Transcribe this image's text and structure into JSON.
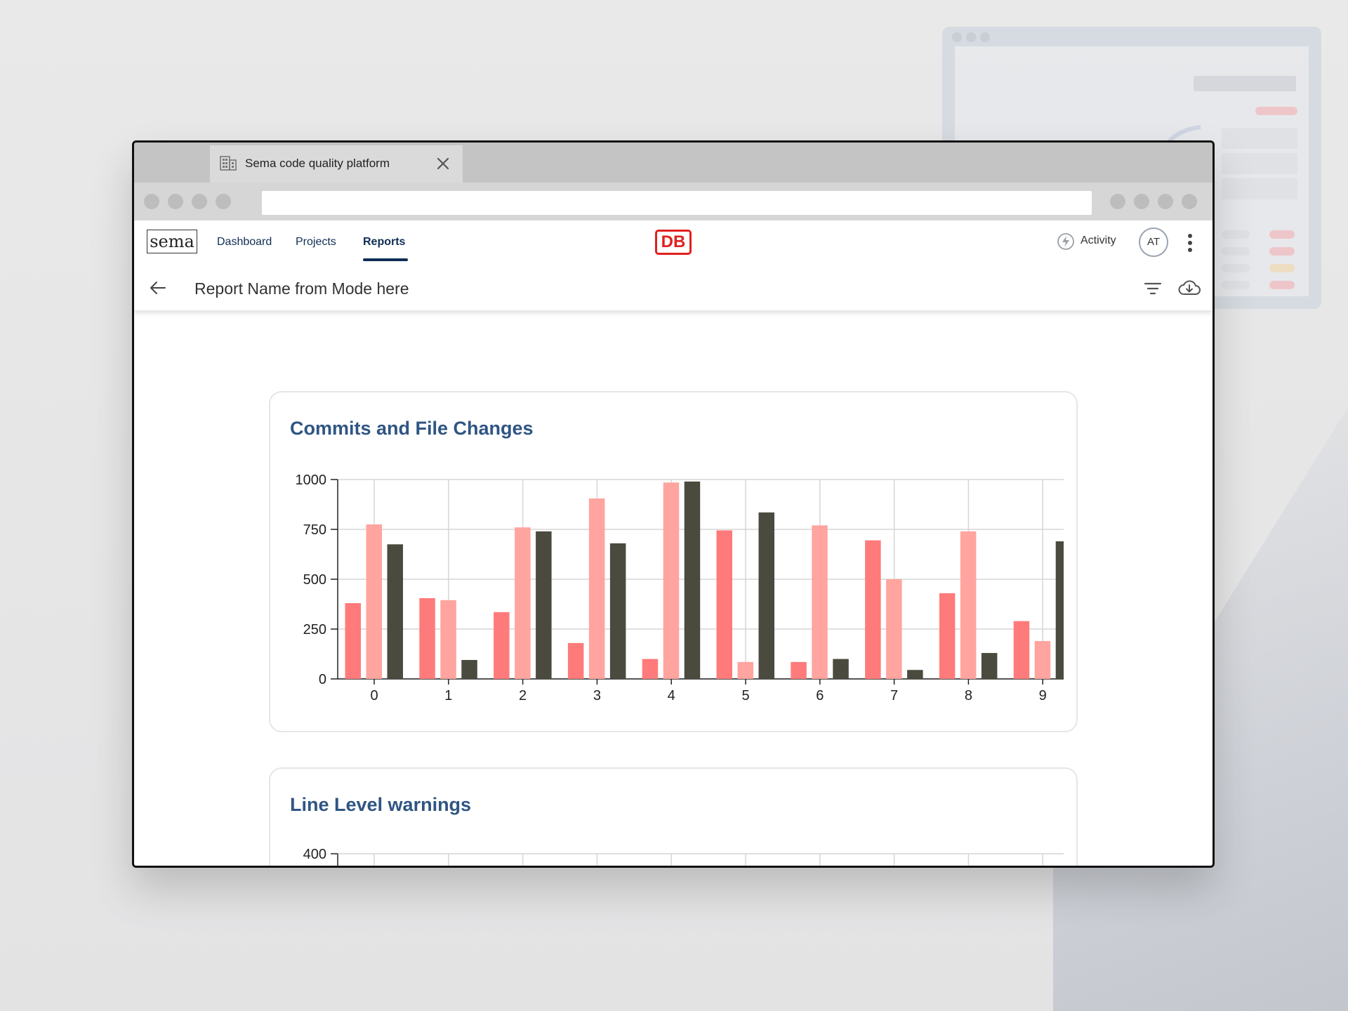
{
  "browser": {
    "tab_title": "Sema code quality platform",
    "url": ""
  },
  "nav": {
    "logo": "sema",
    "links": [
      "Dashboard",
      "Projects",
      "Reports"
    ],
    "active": "Reports",
    "brand_logo": "DB",
    "activity_label": "Activity",
    "avatar_initials": "AT"
  },
  "subheader": {
    "title": "Report Name from Mode here"
  },
  "colors": {
    "series1": "#ff7b7b",
    "series2": "#ffa49f",
    "series3": "#4a4a3e",
    "title": "#2f5583",
    "nav": "#0f2e55",
    "brand": "#e0201f"
  },
  "cards": [
    {
      "title": "Commits and File Changes"
    },
    {
      "title": "Line Level warnings"
    }
  ],
  "chart_data": [
    {
      "type": "bar",
      "title": "Commits and File Changes",
      "categories": [
        "0",
        "1",
        "2",
        "3",
        "4",
        "5",
        "6",
        "7",
        "8",
        "9"
      ],
      "series": [
        {
          "values": [
            380,
            405,
            335,
            180,
            100,
            745,
            85,
            695,
            430,
            290
          ]
        },
        {
          "values": [
            775,
            395,
            760,
            905,
            985,
            85,
            770,
            500,
            740,
            190
          ]
        },
        {
          "values": [
            675,
            95,
            740,
            680,
            990,
            835,
            100,
            45,
            130,
            690
          ]
        }
      ],
      "y_ticks": [
        "0",
        "250",
        "500",
        "750",
        "1000"
      ],
      "ylim": [
        0,
        1000
      ],
      "grid": true,
      "legend": "none"
    },
    {
      "type": "bar",
      "title": "Line Level warnings",
      "y_ticks": [
        "400"
      ],
      "grid": true
    }
  ]
}
